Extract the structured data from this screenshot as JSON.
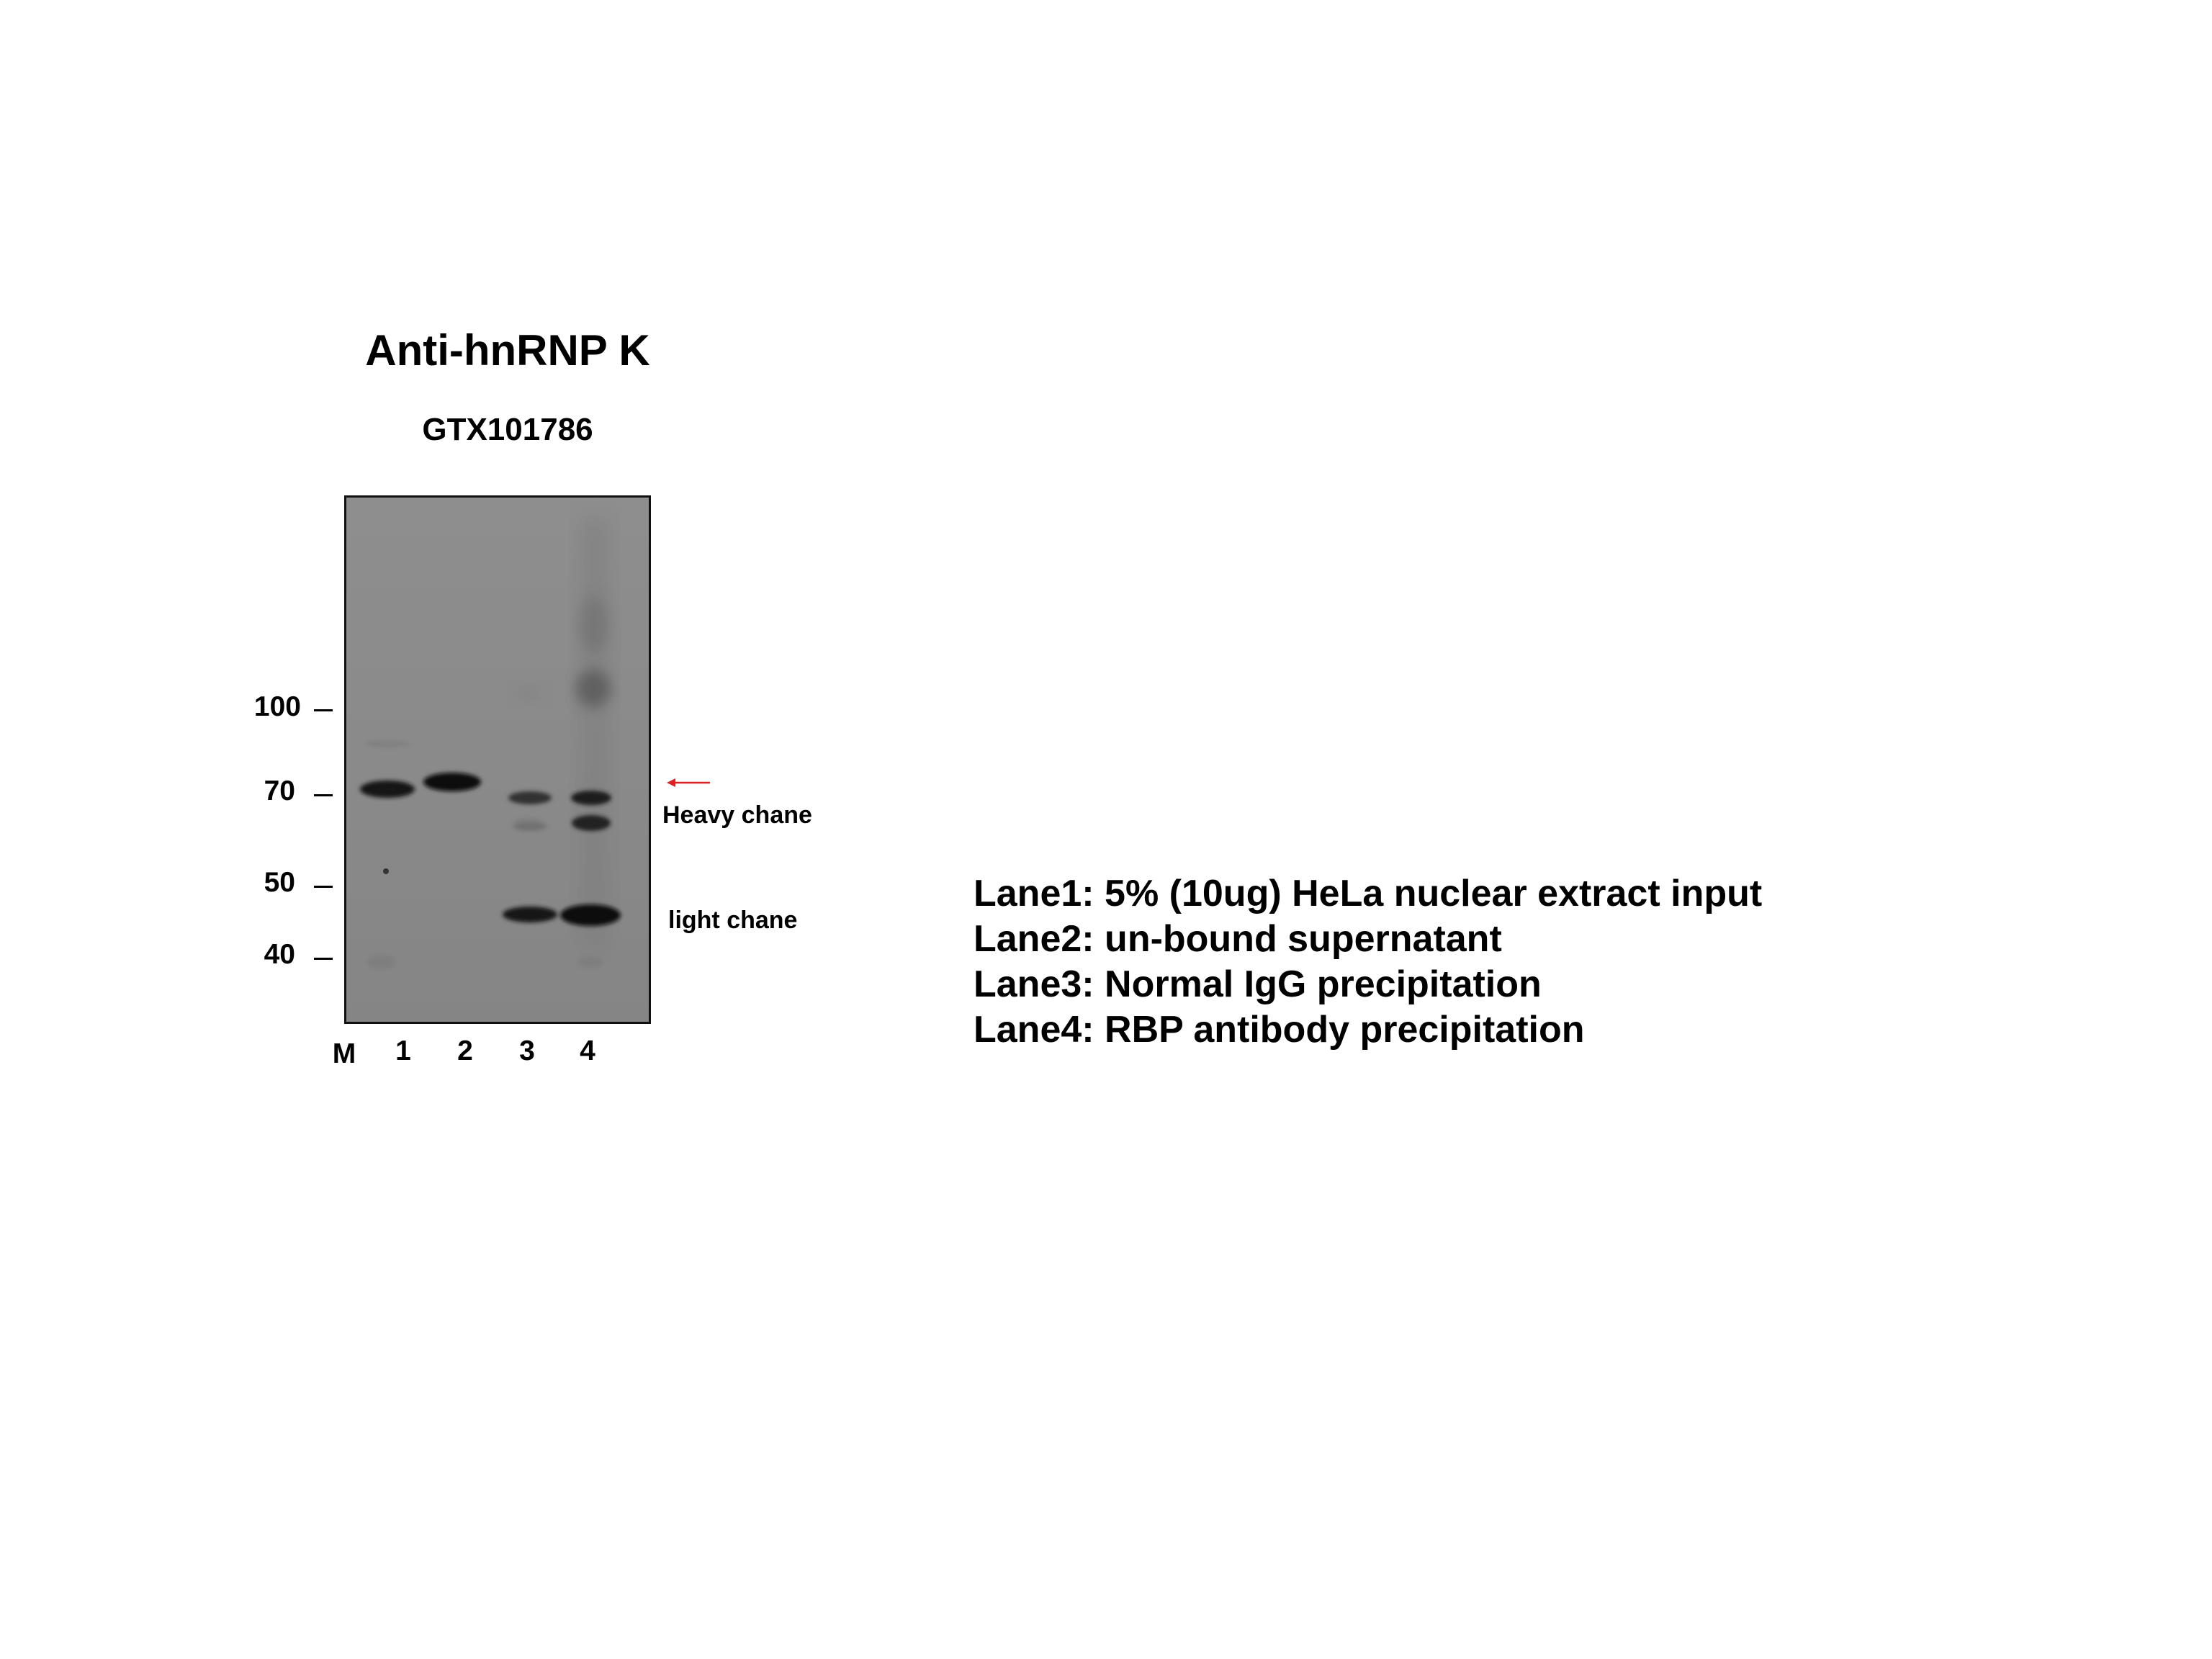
{
  "figure": {
    "title": "Anti-hnRNP K",
    "subtitle": "GTX101786"
  },
  "markers": {
    "lane_label": "M",
    "bands": [
      {
        "label": "100",
        "kda": 100
      },
      {
        "label": "70",
        "kda": 70
      },
      {
        "label": "50",
        "kda": 50
      },
      {
        "label": "40",
        "kda": 40
      }
    ]
  },
  "lanes": [
    "1",
    "2",
    "3",
    "4"
  ],
  "annotations": {
    "heavy_chain": "Heavy chane",
    "light_chain": "light chane",
    "arrow_color": "#e02020"
  },
  "legend": [
    "Lane1: 5% (10ug) HeLa nuclear extract input",
    "Lane2: un-bound supernatant",
    "Lane3: Normal IgG precipitation",
    "Lane4: RBP antibody precipitation"
  ],
  "colors": {
    "membrane": "#8a8a8a",
    "band": "#121212"
  }
}
